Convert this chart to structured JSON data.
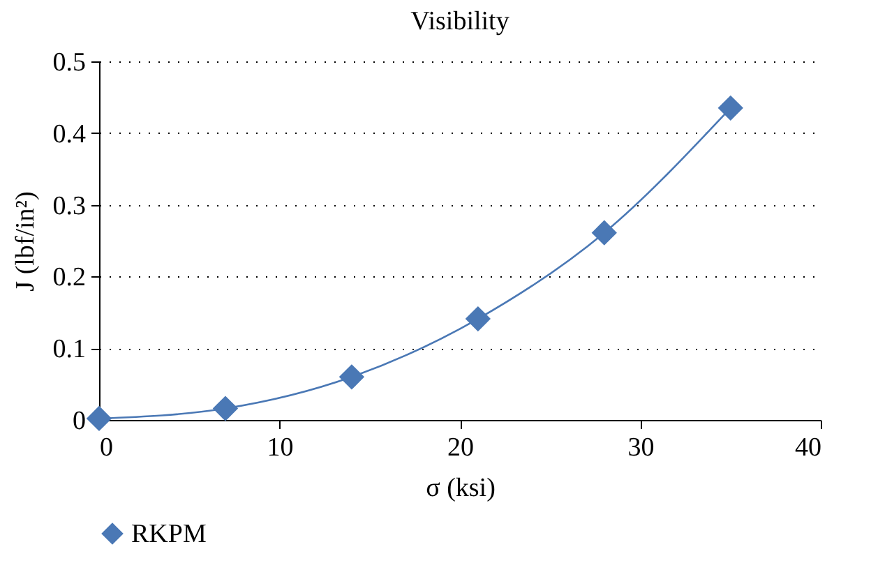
{
  "chart_data": {
    "type": "line",
    "title": "Visibility",
    "xlabel": "σ (ksi)",
    "ylabel": "J (lbf/in²)",
    "x": [
      0,
      7,
      14,
      21,
      28,
      35
    ],
    "series": [
      {
        "name": "RKPM",
        "color": "#4a78b5",
        "values": [
          0.002,
          0.016,
          0.06,
          0.141,
          0.261,
          0.435
        ]
      }
    ],
    "xlim": [
      0,
      40
    ],
    "xticks": [
      0,
      10,
      20,
      30,
      40
    ],
    "ylim": [
      0,
      0.5
    ],
    "yticks": [
      {
        "value": 0,
        "label": "0"
      },
      0.1,
      0.2,
      0.3,
      0.4,
      0.5
    ],
    "grid": "y",
    "legend": "bottom left",
    "marker": "diamond",
    "line_style": "solid"
  }
}
